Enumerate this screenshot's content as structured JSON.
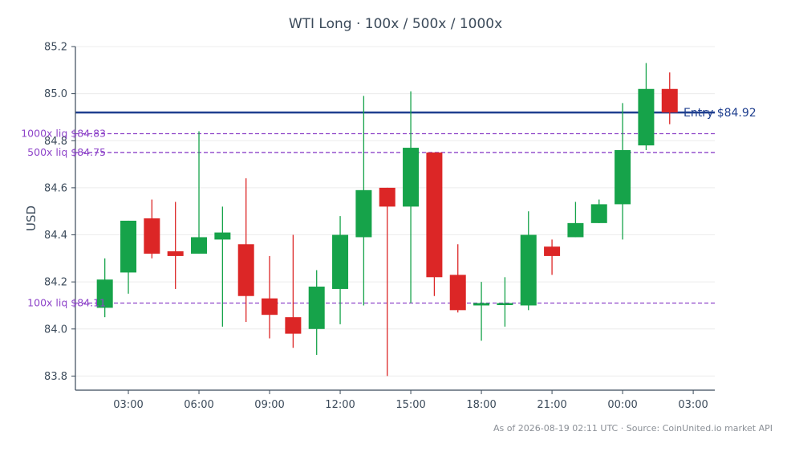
{
  "chart_data": {
    "type": "candlestick",
    "title": "WTI Long · 100x / 500x / 1000x",
    "ylabel": "USD",
    "xlabel": "",
    "ylim": [
      83.74,
      85.2
    ],
    "yticks": [
      83.8,
      84.0,
      84.2,
      84.4,
      84.6,
      84.8,
      85.0,
      85.2
    ],
    "xlim": [
      "2026-08-18T00:45",
      "2026-08-19T03:55"
    ],
    "xticks": [
      {
        "t": "2026-08-18T03:00",
        "label": "03:00"
      },
      {
        "t": "2026-08-18T06:00",
        "label": "06:00"
      },
      {
        "t": "2026-08-18T09:00",
        "label": "09:00"
      },
      {
        "t": "2026-08-18T12:00",
        "label": "12:00"
      },
      {
        "t": "2026-08-18T15:00",
        "label": "15:00"
      },
      {
        "t": "2026-08-18T18:00",
        "label": "18:00"
      },
      {
        "t": "2026-08-18T21:00",
        "label": "21:00"
      },
      {
        "t": "2026-08-19T00:00",
        "label": "00:00"
      },
      {
        "t": "2026-08-19T03:00",
        "label": "03:00"
      }
    ],
    "grid": "horizontal",
    "candles": [
      {
        "t": "2026-08-18T02:00",
        "open": 84.09,
        "high": 84.3,
        "low": 84.05,
        "close": 84.21
      },
      {
        "t": "2026-08-18T03:00",
        "open": 84.24,
        "high": 84.46,
        "low": 84.15,
        "close": 84.46
      },
      {
        "t": "2026-08-18T04:00",
        "open": 84.47,
        "high": 84.55,
        "low": 84.3,
        "close": 84.32
      },
      {
        "t": "2026-08-18T05:00",
        "open": 84.33,
        "high": 84.54,
        "low": 84.17,
        "close": 84.31
      },
      {
        "t": "2026-08-18T06:00",
        "open": 84.32,
        "high": 84.84,
        "low": 84.32,
        "close": 84.39
      },
      {
        "t": "2026-08-18T07:00",
        "open": 84.38,
        "high": 84.52,
        "low": 84.01,
        "close": 84.41
      },
      {
        "t": "2026-08-18T08:00",
        "open": 84.36,
        "high": 84.64,
        "low": 84.03,
        "close": 84.14
      },
      {
        "t": "2026-08-18T09:00",
        "open": 84.13,
        "high": 84.31,
        "low": 83.96,
        "close": 84.06
      },
      {
        "t": "2026-08-18T10:00",
        "open": 84.05,
        "high": 84.4,
        "low": 83.92,
        "close": 83.98
      },
      {
        "t": "2026-08-18T11:00",
        "open": 84.0,
        "high": 84.25,
        "low": 83.89,
        "close": 84.18
      },
      {
        "t": "2026-08-18T12:00",
        "open": 84.17,
        "high": 84.48,
        "low": 84.02,
        "close": 84.4
      },
      {
        "t": "2026-08-18T13:00",
        "open": 84.39,
        "high": 84.99,
        "low": 84.1,
        "close": 84.59
      },
      {
        "t": "2026-08-18T14:00",
        "open": 84.6,
        "high": 84.6,
        "low": 83.8,
        "close": 84.52
      },
      {
        "t": "2026-08-18T15:00",
        "open": 84.52,
        "high": 85.01,
        "low": 84.11,
        "close": 84.77
      },
      {
        "t": "2026-08-18T16:00",
        "open": 84.75,
        "high": 84.75,
        "low": 84.14,
        "close": 84.22
      },
      {
        "t": "2026-08-18T17:00",
        "open": 84.23,
        "high": 84.36,
        "low": 84.07,
        "close": 84.08
      },
      {
        "t": "2026-08-18T18:00",
        "open": 84.1,
        "high": 84.2,
        "low": 83.95,
        "close": 84.11
      },
      {
        "t": "2026-08-18T19:00",
        "open": 84.11,
        "high": 84.22,
        "low": 84.01,
        "close": 84.11
      },
      {
        "t": "2026-08-18T20:00",
        "open": 84.1,
        "high": 84.5,
        "low": 84.08,
        "close": 84.4
      },
      {
        "t": "2026-08-18T21:00",
        "open": 84.35,
        "high": 84.38,
        "low": 84.23,
        "close": 84.31
      },
      {
        "t": "2026-08-18T22:00",
        "open": 84.39,
        "high": 84.54,
        "low": 84.39,
        "close": 84.45
      },
      {
        "t": "2026-08-18T23:00",
        "open": 84.45,
        "high": 84.55,
        "low": 84.45,
        "close": 84.53
      },
      {
        "t": "2026-08-19T00:00",
        "open": 84.53,
        "high": 84.96,
        "low": 84.38,
        "close": 84.76
      },
      {
        "t": "2026-08-19T01:00",
        "open": 84.78,
        "high": 85.13,
        "low": 84.76,
        "close": 85.02
      },
      {
        "t": "2026-08-19T02:00",
        "open": 85.02,
        "high": 85.09,
        "low": 84.87,
        "close": 84.92
      }
    ],
    "hlines": [
      {
        "name": "entry",
        "value": 84.92,
        "label": "Entry $84.92",
        "color": "#1f3f8f",
        "style": "solid",
        "label_side": "right"
      },
      {
        "name": "liq-1000x",
        "value": 84.83,
        "label": "1000x liq $84.83",
        "color": "#8e44c9",
        "style": "dashed",
        "label_side": "left"
      },
      {
        "name": "liq-500x",
        "value": 84.75,
        "label": "500x liq $84.75",
        "color": "#8e44c9",
        "style": "dashed",
        "label_side": "left"
      },
      {
        "name": "liq-100x",
        "value": 84.11,
        "label": "100x liq $84.11",
        "color": "#8e44c9",
        "style": "dashed",
        "label_side": "left"
      }
    ],
    "colors": {
      "up": "#16a34a",
      "down": "#dc2626",
      "axis": "#3b4a5a",
      "grid": "#ececec",
      "text": "#3b4a5a"
    }
  },
  "footnote": "As of 2026-08-19 02:11 UTC · Source: CoinUnited.io market API"
}
